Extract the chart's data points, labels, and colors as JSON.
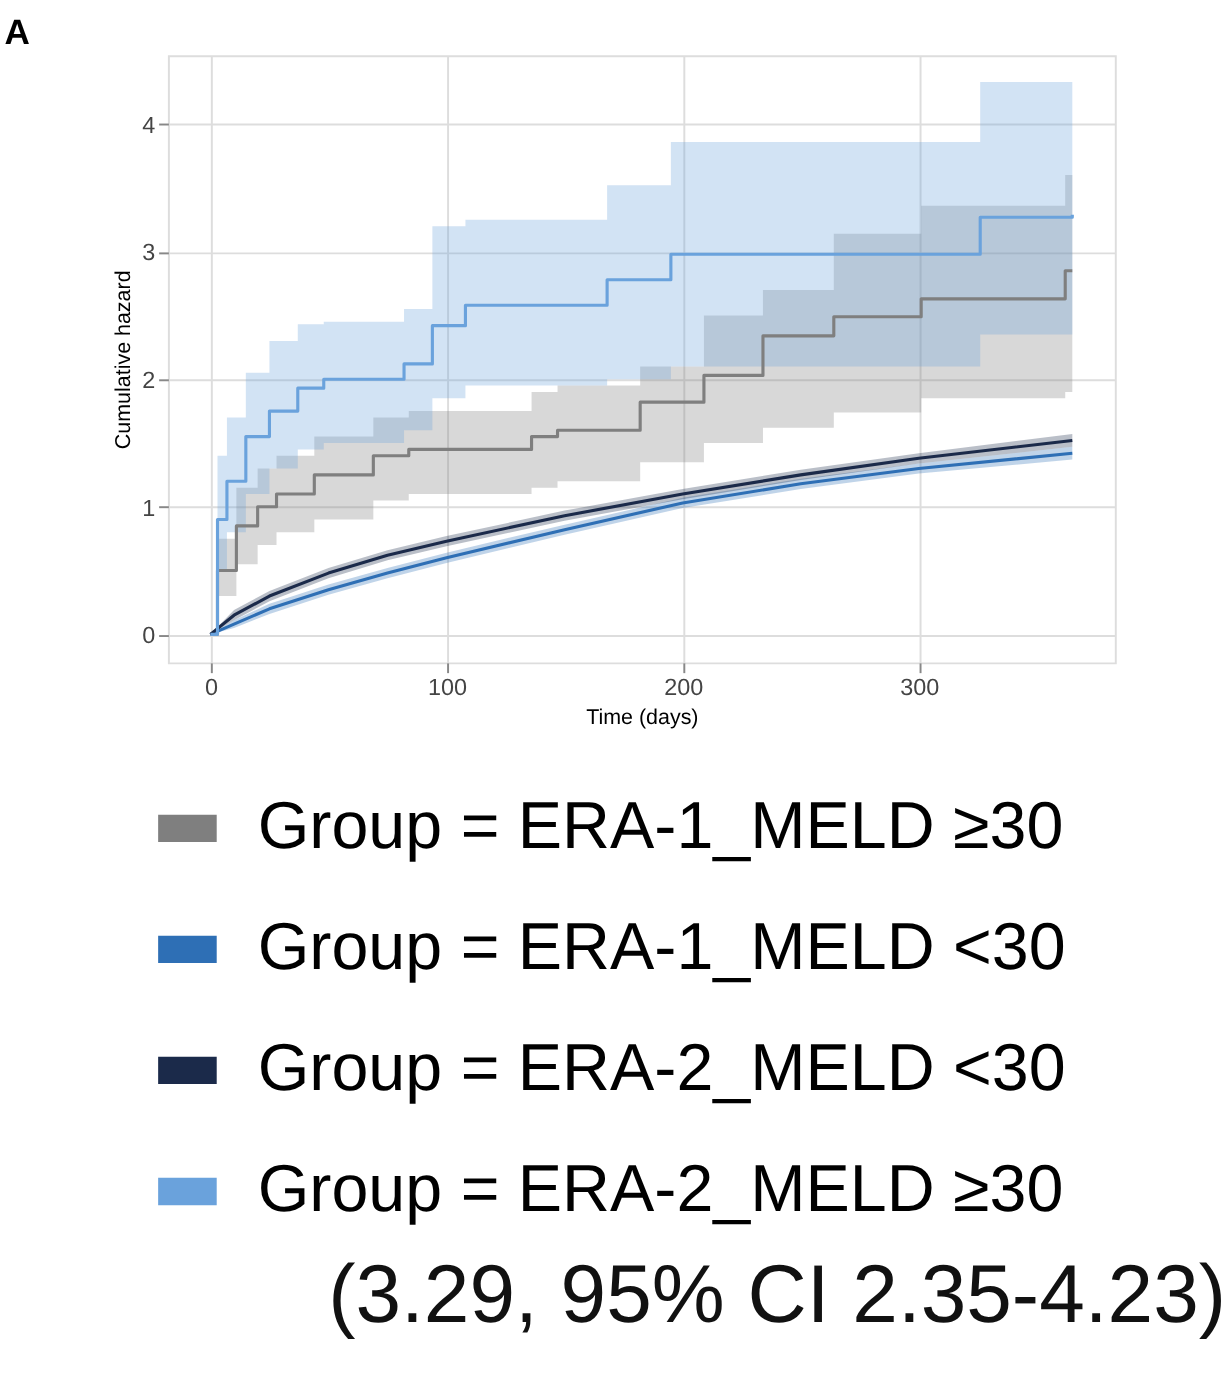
{
  "chart_data": {
    "type": "step",
    "title": "A",
    "xlabel": "Time (days)",
    "ylabel": "Cumulative hazard",
    "xlim": [
      -18,
      383
    ],
    "ylim": [
      -0.22,
      4.54
    ],
    "xticks": [
      0,
      100,
      200,
      300
    ],
    "yticks": [
      0,
      1,
      2,
      3,
      4
    ],
    "grid": true,
    "legend": "bottom",
    "line_style": "solid",
    "marker": "none",
    "annotations": [
      "(3.29, 95% CI 2.35-4.23)"
    ],
    "series": [
      {
        "name": "Group = ERA-1_MELD ≥30",
        "color": "#7f7f7f",
        "x": [
          0,
          3,
          11,
          20,
          28,
          44,
          69,
          84,
          136,
          147,
          182,
          209,
          234,
          264,
          301,
          362,
          365
        ],
        "values": [
          0,
          0.5,
          0.85,
          1.0,
          1.1,
          1.25,
          1.4,
          1.45,
          1.55,
          1.6,
          1.82,
          2.03,
          2.34,
          2.49,
          2.63,
          2.85,
          2.85
        ],
        "lower": [
          0,
          0.3,
          0.55,
          0.7,
          0.8,
          0.9,
          1.05,
          1.1,
          1.15,
          1.2,
          1.35,
          1.5,
          1.62,
          1.74,
          1.85,
          1.9,
          1.9
        ],
        "upper": [
          0,
          0.75,
          1.15,
          1.3,
          1.4,
          1.55,
          1.7,
          1.75,
          1.9,
          1.95,
          2.1,
          2.5,
          2.7,
          3.14,
          3.36,
          3.6,
          3.6
        ]
      },
      {
        "name": "Group = ERA-1_MELD <30",
        "color": "#2e6fb5",
        "type": "line",
        "x": [
          0,
          10,
          25,
          50,
          75,
          100,
          150,
          200,
          250,
          300,
          365
        ],
        "values": [
          0,
          0.08,
          0.2,
          0.35,
          0.48,
          0.6,
          0.82,
          1.03,
          1.18,
          1.3,
          1.42
        ],
        "lower": [
          0,
          0.05,
          0.16,
          0.31,
          0.44,
          0.56,
          0.78,
          0.99,
          1.14,
          1.26,
          1.37
        ],
        "upper": [
          0,
          0.11,
          0.24,
          0.39,
          0.52,
          0.64,
          0.86,
          1.07,
          1.22,
          1.34,
          1.47
        ]
      },
      {
        "name": "Group = ERA-2_MELD <30",
        "color": "#1b2a4a",
        "type": "line",
        "x": [
          0,
          10,
          25,
          50,
          75,
          100,
          150,
          200,
          250,
          300,
          365
        ],
        "values": [
          0,
          0.15,
          0.3,
          0.48,
          0.62,
          0.73,
          0.93,
          1.1,
          1.25,
          1.38,
          1.52
        ],
        "lower": [
          0,
          0.11,
          0.26,
          0.44,
          0.58,
          0.69,
          0.89,
          1.06,
          1.21,
          1.34,
          1.47
        ],
        "upper": [
          0,
          0.19,
          0.34,
          0.52,
          0.66,
          0.77,
          0.97,
          1.14,
          1.29,
          1.42,
          1.57
        ]
      },
      {
        "name": "Group = ERA-2_MELD ≥30",
        "color": "#6aa2dc",
        "x": [
          0,
          3,
          7,
          15,
          25,
          37,
          48,
          82,
          94,
          108,
          168,
          195,
          326,
          365
        ],
        "values": [
          0,
          0.9,
          1.2,
          1.55,
          1.75,
          1.93,
          2.0,
          2.12,
          2.42,
          2.58,
          2.78,
          2.98,
          3.27,
          3.29
        ],
        "lower": [
          0,
          0.5,
          0.8,
          1.1,
          1.3,
          1.45,
          1.5,
          1.6,
          1.85,
          1.95,
          2.0,
          2.1,
          2.35,
          2.35
        ],
        "upper": [
          0,
          1.4,
          1.7,
          2.05,
          2.3,
          2.43,
          2.45,
          2.55,
          3.2,
          3.25,
          3.52,
          3.86,
          4.33,
          4.33
        ]
      }
    ]
  }
}
